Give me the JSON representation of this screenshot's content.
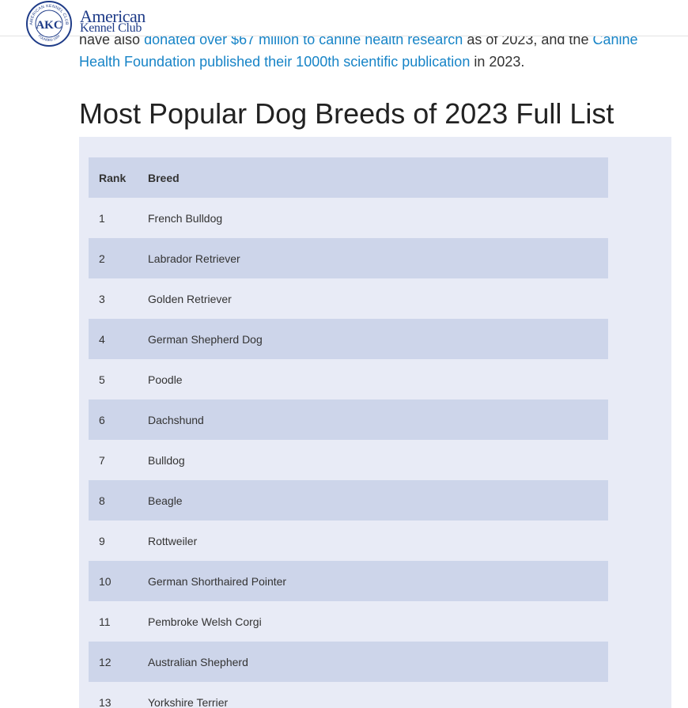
{
  "header": {
    "logo": {
      "seal_text_top": "AMERICAN KENNEL CLUB",
      "seal_monogram": "AKC",
      "seal_text_bottom": "FOUNDED 1884",
      "word_line1": "American",
      "word_line2": "Kennel Club"
    }
  },
  "intro": {
    "text_1": "have also ",
    "link_1": "donated over $67 million to canine health research",
    "text_2": " as of 2023, and the ",
    "link_2": "Canine Health Foundation published their 1000th scientific publication",
    "text_3": " in 2023."
  },
  "section": {
    "title": "Most Popular Dog Breeds of 2023 Full List"
  },
  "table": {
    "headers": [
      "Rank",
      "Breed"
    ],
    "rows": [
      {
        "rank": "1",
        "breed": "French Bulldog"
      },
      {
        "rank": "2",
        "breed": "Labrador Retriever"
      },
      {
        "rank": "3",
        "breed": "Golden Retriever"
      },
      {
        "rank": "4",
        "breed": "German Shepherd Dog"
      },
      {
        "rank": "5",
        "breed": "Poodle"
      },
      {
        "rank": "6",
        "breed": "Dachshund"
      },
      {
        "rank": "7",
        "breed": "Bulldog"
      },
      {
        "rank": "8",
        "breed": "Beagle"
      },
      {
        "rank": "9",
        "breed": "Rottweiler"
      },
      {
        "rank": "10",
        "breed": "German Shorthaired Pointer"
      },
      {
        "rank": "11",
        "breed": "Pembroke Welsh Corgi"
      },
      {
        "rank": "12",
        "breed": "Australian Shepherd"
      },
      {
        "rank": "13",
        "breed": "Yorkshire Terrier"
      }
    ]
  },
  "colors": {
    "link": "#1784c7",
    "brand_blue": "#1f3c88",
    "table_panel": "#e8ebf6",
    "table_band": "#cdd5ea"
  }
}
